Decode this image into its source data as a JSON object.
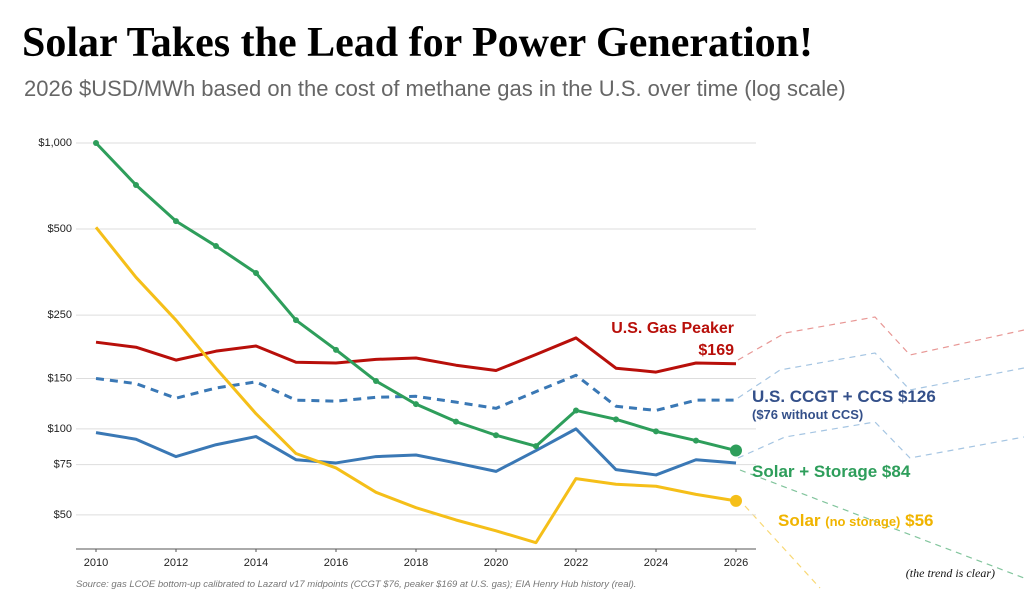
{
  "chart_data": {
    "type": "line",
    "title": "Solar Takes the Lead for Power Generation!",
    "subtitle": "2026 $USD/MWh based on the cost of methane gas in the U.S. over time (log scale)",
    "source": "Source: gas LCOE bottom-up calibrated to Lazard v17 midpoints (CCGT $76, peaker $169 at U.S. gas); EIA Henry Hub history (real).",
    "annotation": "(the trend is clear)",
    "log_scale": true,
    "grid": true,
    "x": [
      2010,
      2011,
      2012,
      2013,
      2014,
      2015,
      2016,
      2017,
      2018,
      2019,
      2020,
      2021,
      2022,
      2023,
      2024,
      2025,
      2026
    ],
    "xlim": [
      2009.5,
      2026.5
    ],
    "xticks": [
      2010,
      2012,
      2014,
      2016,
      2018,
      2020,
      2022,
      2024,
      2026
    ],
    "ylim": [
      38,
      1000
    ],
    "yticks": [
      {
        "value": 50,
        "label": "$50"
      },
      {
        "value": 75,
        "label": "$75"
      },
      {
        "value": 100,
        "label": "$100"
      },
      {
        "value": 150,
        "label": "$150"
      },
      {
        "value": 250,
        "label": "$250"
      },
      {
        "value": 500,
        "label": "$500"
      },
      {
        "value": 1000,
        "label": "$1,000"
      }
    ],
    "series": [
      {
        "name": "U.S. Gas Peaker",
        "color": "#b80f0a",
        "values": [
          201,
          193,
          174,
          187,
          195,
          171,
          170,
          175,
          177,
          167,
          160,
          182,
          208,
          163,
          158,
          170,
          169
        ],
        "value_labels": [
          null,
          null,
          null,
          null,
          null,
          null,
          null,
          null,
          null,
          null,
          null,
          null,
          null,
          null,
          null,
          null,
          "$169"
        ]
      },
      {
        "name": "U.S. CCGT + CCS",
        "color": "#3a78b5",
        "dashed": true,
        "values": [
          150,
          144,
          128,
          139,
          146,
          126,
          125,
          129,
          130,
          124,
          118,
          135,
          154,
          120,
          116,
          126,
          126
        ],
        "value_labels": [
          null,
          null,
          null,
          null,
          null,
          null,
          null,
          null,
          null,
          null,
          null,
          null,
          null,
          null,
          null,
          null,
          "$126"
        ]
      },
      {
        "color": "#3a78b5",
        "note": "($76 without CCS)",
        "values": [
          97,
          92,
          80,
          88,
          94,
          78,
          76,
          80,
          81,
          76,
          71,
          84,
          100,
          72,
          69,
          78,
          76
        ]
      },
      {
        "name": "Solar + Storage",
        "color": "#2e9e5b",
        "markers": true,
        "values": [
          1000,
          713,
          533,
          436,
          351,
          240,
          189,
          147,
          122,
          106,
          95,
          87,
          116,
          108,
          98,
          91,
          84
        ],
        "value_labels": [
          null,
          null,
          null,
          null,
          null,
          null,
          null,
          null,
          null,
          null,
          null,
          null,
          null,
          null,
          null,
          null,
          "$84"
        ]
      },
      {
        "name": "Solar",
        "qualifier": "(no storage)",
        "color": "#f5bf19",
        "values": [
          507,
          339,
          240,
          163,
          113,
          82,
          73,
          60,
          53,
          48,
          44,
          40,
          67,
          64,
          63,
          59,
          56
        ],
        "value_labels": [
          null,
          null,
          null,
          null,
          null,
          null,
          null,
          null,
          null,
          null,
          null,
          null,
          null,
          null,
          null,
          null,
          "$56"
        ]
      }
    ]
  }
}
